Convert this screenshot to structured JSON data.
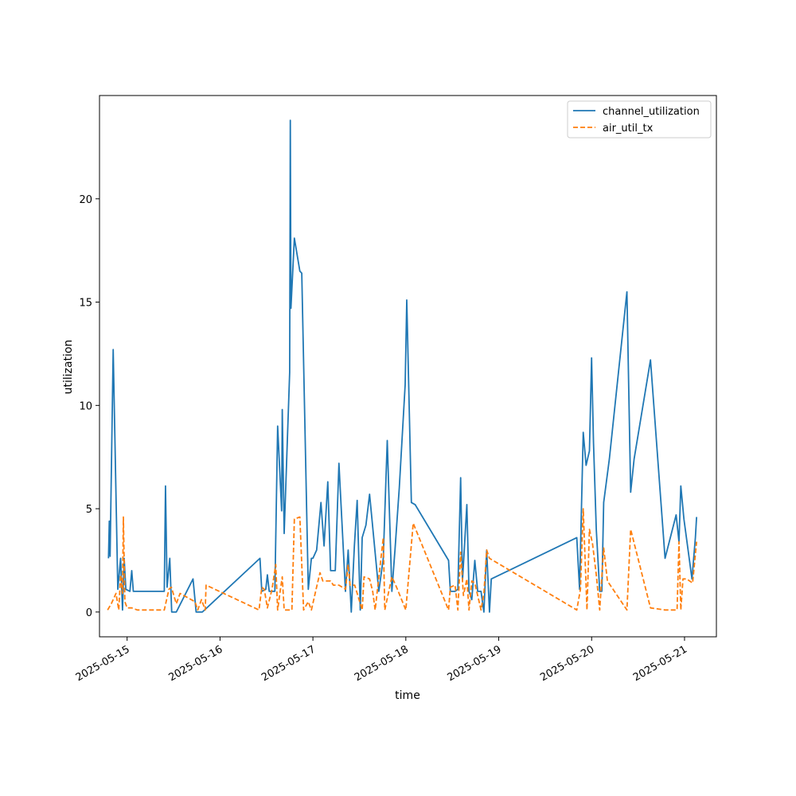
{
  "chart_data": {
    "type": "line",
    "title": "",
    "xlabel": "time",
    "ylabel": "utilization",
    "x_ticks": [
      "2025-05-15",
      "2025-05-16",
      "2025-05-17",
      "2025-05-18",
      "2025-05-19",
      "2025-05-20",
      "2025-05-21"
    ],
    "y_ticks": [
      0,
      5,
      10,
      15,
      20
    ],
    "xlim": [
      "2025-05-14T16:52",
      "2025-05-21T08:14"
    ],
    "ylim": [
      -1.2,
      25
    ],
    "grid": false,
    "legend_position": "top-right",
    "series": [
      {
        "name": "channel_utilization",
        "color": "#1f77b4",
        "style": "solid",
        "points": [
          [
            "2025-05-14T19:12",
            2.6
          ],
          [
            "2025-05-14T19:24",
            4.4
          ],
          [
            "2025-05-14T19:36",
            2.7
          ],
          [
            "2025-05-14T20:24",
            12.7
          ],
          [
            "2025-05-14T21:36",
            1.1
          ],
          [
            "2025-05-14T22:19",
            2.6
          ],
          [
            "2025-05-14T22:48",
            0.1
          ],
          [
            "2025-05-14T23:14",
            2.6
          ],
          [
            "2025-05-14T23:40",
            1.1
          ],
          [
            "2025-05-15T00:43",
            1.0
          ],
          [
            "2025-05-15T01:12",
            2.0
          ],
          [
            "2025-05-15T01:36",
            1.0
          ],
          [
            "2025-05-15T09:36",
            1.0
          ],
          [
            "2025-05-15T09:55",
            6.1
          ],
          [
            "2025-05-15T10:19",
            1.2
          ],
          [
            "2025-05-15T11:02",
            2.6
          ],
          [
            "2025-05-15T11:31",
            0.0
          ],
          [
            "2025-05-15T12:43",
            0.0
          ],
          [
            "2025-05-15T17:02",
            1.6
          ],
          [
            "2025-05-15T17:50",
            0.0
          ],
          [
            "2025-05-15T19:26",
            0.0
          ],
          [
            "2025-05-16T10:19",
            2.6
          ],
          [
            "2025-05-16T10:48",
            1.0
          ],
          [
            "2025-05-16T11:50",
            1.1
          ],
          [
            "2025-05-16T12:14",
            1.8
          ],
          [
            "2025-05-16T12:43",
            1.0
          ],
          [
            "2025-05-16T14:10",
            1.0
          ],
          [
            "2025-05-16T14:53",
            9.0
          ],
          [
            "2025-05-16T15:55",
            4.9
          ],
          [
            "2025-05-16T16:05",
            9.8
          ],
          [
            "2025-05-16T16:34",
            3.8
          ],
          [
            "2025-05-16T18:00",
            11.6
          ],
          [
            "2025-05-16T18:10",
            23.8
          ],
          [
            "2025-05-16T18:19",
            14.7
          ],
          [
            "2025-05-16T19:12",
            18.1
          ],
          [
            "2025-05-16T20:38",
            16.5
          ],
          [
            "2025-05-16T21:07",
            16.4
          ],
          [
            "2025-05-16T22:48",
            1.1
          ],
          [
            "2025-05-16T23:36",
            2.6
          ],
          [
            "2025-05-17T00:00",
            2.6
          ],
          [
            "2025-05-17T00:58",
            3.0
          ],
          [
            "2025-05-17T02:05",
            5.3
          ],
          [
            "2025-05-17T02:53",
            3.2
          ],
          [
            "2025-05-17T03:50",
            6.3
          ],
          [
            "2025-05-17T04:34",
            2.0
          ],
          [
            "2025-05-17T05:46",
            2.0
          ],
          [
            "2025-05-17T06:43",
            7.2
          ],
          [
            "2025-05-17T08:24",
            1.0
          ],
          [
            "2025-05-17T09:07",
            3.0
          ],
          [
            "2025-05-17T09:55",
            0.0
          ],
          [
            "2025-05-17T10:43",
            3.2
          ],
          [
            "2025-05-17T11:26",
            5.4
          ],
          [
            "2025-05-17T12:14",
            0.1
          ],
          [
            "2025-05-17T12:43",
            3.6
          ],
          [
            "2025-05-17T13:41",
            4.2
          ],
          [
            "2025-05-17T14:38",
            5.7
          ],
          [
            "2025-05-17T17:02",
            1.0
          ],
          [
            "2025-05-17T18:10",
            2.6
          ],
          [
            "2025-05-17T19:12",
            8.3
          ],
          [
            "2025-05-17T20:24",
            1.0
          ],
          [
            "2025-05-17T21:12",
            3.0
          ],
          [
            "2025-05-17T22:19",
            6.0
          ],
          [
            "2025-05-17T23:50",
            11.0
          ],
          [
            "2025-05-18T00:14",
            15.1
          ],
          [
            "2025-05-18T01:26",
            5.3
          ],
          [
            "2025-05-18T02:24",
            5.2
          ],
          [
            "2025-05-18T11:02",
            2.5
          ],
          [
            "2025-05-18T11:31",
            1.0
          ],
          [
            "2025-05-18T12:43",
            1.0
          ],
          [
            "2025-05-18T13:26",
            1.1
          ],
          [
            "2025-05-18T14:10",
            6.5
          ],
          [
            "2025-05-18T14:38",
            1.5
          ],
          [
            "2025-05-18T15:46",
            5.2
          ],
          [
            "2025-05-18T16:19",
            1.0
          ],
          [
            "2025-05-18T17:02",
            0.6
          ],
          [
            "2025-05-18T17:50",
            2.5
          ],
          [
            "2025-05-18T18:34",
            1.0
          ],
          [
            "2025-05-18T19:26",
            1.0
          ],
          [
            "2025-05-18T20:10",
            0.0
          ],
          [
            "2025-05-18T20:53",
            3.0
          ],
          [
            "2025-05-18T21:36",
            0.0
          ],
          [
            "2025-05-18T22:05",
            1.6
          ],
          [
            "2025-05-19T20:10",
            3.6
          ],
          [
            "2025-05-19T20:53",
            1.1
          ],
          [
            "2025-05-19T21:50",
            8.7
          ],
          [
            "2025-05-19T22:34",
            7.1
          ],
          [
            "2025-05-19T23:26",
            7.8
          ],
          [
            "2025-05-20T00:00",
            12.3
          ],
          [
            "2025-05-20T00:29",
            8.2
          ],
          [
            "2025-05-20T01:12",
            4.0
          ],
          [
            "2025-05-20T02:05",
            1.0
          ],
          [
            "2025-05-20T02:38",
            1.0
          ],
          [
            "2025-05-20T03:07",
            5.3
          ],
          [
            "2025-05-20T04:34",
            7.4
          ],
          [
            "2025-05-20T09:07",
            15.5
          ],
          [
            "2025-05-20T10:05",
            5.8
          ],
          [
            "2025-05-20T10:58",
            7.4
          ],
          [
            "2025-05-20T15:12",
            12.2
          ],
          [
            "2025-05-20T18:58",
            2.6
          ],
          [
            "2025-05-20T21:50",
            4.7
          ],
          [
            "2025-05-20T22:34",
            3.4
          ],
          [
            "2025-05-20T23:02",
            6.1
          ],
          [
            "2025-05-20T23:50",
            4.5
          ],
          [
            "2025-05-21T01:55",
            1.6
          ],
          [
            "2025-05-21T02:48",
            3.6
          ],
          [
            "2025-05-21T03:07",
            4.6
          ]
        ]
      },
      {
        "name": "air_util_tx",
        "color": "#ff7f0e",
        "style": "dashed",
        "points": [
          [
            "2025-05-14T18:58",
            0.1
          ],
          [
            "2025-05-14T19:55",
            0.4
          ],
          [
            "2025-05-14T21:07",
            0.9
          ],
          [
            "2025-05-14T21:50",
            0.1
          ],
          [
            "2025-05-14T22:19",
            1.8
          ],
          [
            "2025-05-14T22:48",
            0.9
          ],
          [
            "2025-05-14T23:02",
            4.6
          ],
          [
            "2025-05-14T23:26",
            0.5
          ],
          [
            "2025-05-15T00:00",
            0.2
          ],
          [
            "2025-05-15T01:12",
            0.2
          ],
          [
            "2025-05-15T02:38",
            0.1
          ],
          [
            "2025-05-15T09:36",
            0.1
          ],
          [
            "2025-05-15T10:48",
            1.1
          ],
          [
            "2025-05-15T11:26",
            1.2
          ],
          [
            "2025-05-15T12:43",
            0.4
          ],
          [
            "2025-05-15T13:41",
            0.9
          ],
          [
            "2025-05-15T17:31",
            0.5
          ],
          [
            "2025-05-15T18:14",
            0.1
          ],
          [
            "2025-05-15T19:12",
            0.6
          ],
          [
            "2025-05-15T20:10",
            0.1
          ],
          [
            "2025-05-15T20:24",
            1.3
          ],
          [
            "2025-05-16T10:05",
            0.1
          ],
          [
            "2025-05-16T10:48",
            1.2
          ],
          [
            "2025-05-16T11:26",
            1.1
          ],
          [
            "2025-05-16T12:14",
            0.2
          ],
          [
            "2025-05-16T13:26",
            1.1
          ],
          [
            "2025-05-16T14:24",
            2.3
          ],
          [
            "2025-05-16T14:53",
            0.1
          ],
          [
            "2025-05-16T15:36",
            1.1
          ],
          [
            "2025-05-16T16:05",
            1.7
          ],
          [
            "2025-05-16T16:34",
            0.1
          ],
          [
            "2025-05-16T18:34",
            0.1
          ],
          [
            "2025-05-16T19:12",
            4.5
          ],
          [
            "2025-05-16T20:38",
            4.6
          ],
          [
            "2025-05-16T21:36",
            0.1
          ],
          [
            "2025-05-16T22:48",
            0.5
          ],
          [
            "2025-05-16T23:36",
            0.1
          ],
          [
            "2025-05-17T01:12",
            1.4
          ],
          [
            "2025-05-17T01:50",
            1.9
          ],
          [
            "2025-05-17T02:34",
            1.5
          ],
          [
            "2025-05-17T04:34",
            1.5
          ],
          [
            "2025-05-17T05:17",
            1.3
          ],
          [
            "2025-05-17T06:43",
            1.3
          ],
          [
            "2025-05-17T08:24",
            1.1
          ],
          [
            "2025-05-17T09:07",
            2.3
          ],
          [
            "2025-05-17T09:36",
            1.3
          ],
          [
            "2025-05-17T10:48",
            1.3
          ],
          [
            "2025-05-17T12:43",
            0.1
          ],
          [
            "2025-05-17T13:12",
            1.7
          ],
          [
            "2025-05-17T14:38",
            1.6
          ],
          [
            "2025-05-17T15:26",
            1.0
          ],
          [
            "2025-05-17T16:05",
            0.1
          ],
          [
            "2025-05-17T18:10",
            3.6
          ],
          [
            "2025-05-17T18:34",
            0.1
          ],
          [
            "2025-05-17T20:24",
            1.7
          ],
          [
            "2025-05-17T21:36",
            1.2
          ],
          [
            "2025-05-18T00:00",
            0.1
          ],
          [
            "2025-05-18T01:55",
            4.3
          ],
          [
            "2025-05-18T11:02",
            0.1
          ],
          [
            "2025-05-18T11:31",
            1.2
          ],
          [
            "2025-05-18T12:43",
            1.3
          ],
          [
            "2025-05-18T13:26",
            0.1
          ],
          [
            "2025-05-18T14:10",
            2.9
          ],
          [
            "2025-05-18T14:53",
            0.8
          ],
          [
            "2025-05-18T15:46",
            1.6
          ],
          [
            "2025-05-18T16:19",
            0.1
          ],
          [
            "2025-05-18T17:02",
            1.5
          ],
          [
            "2025-05-18T17:50",
            1.4
          ],
          [
            "2025-05-18T19:26",
            0.1
          ],
          [
            "2025-05-18T20:10",
            0.9
          ],
          [
            "2025-05-18T20:53",
            3.0
          ],
          [
            "2025-05-18T21:36",
            2.6
          ],
          [
            "2025-05-19T20:10",
            0.1
          ],
          [
            "2025-05-19T21:07",
            1.1
          ],
          [
            "2025-05-19T21:50",
            5.0
          ],
          [
            "2025-05-19T22:48",
            0.1
          ],
          [
            "2025-05-19T23:26",
            4.0
          ],
          [
            "2025-05-20T00:14",
            3.3
          ],
          [
            "2025-05-20T01:12",
            1.8
          ],
          [
            "2025-05-20T02:05",
            0.1
          ],
          [
            "2025-05-20T03:07",
            3.1
          ],
          [
            "2025-05-20T04:05",
            1.5
          ],
          [
            "2025-05-20T09:07",
            0.1
          ],
          [
            "2025-05-20T10:05",
            4.0
          ],
          [
            "2025-05-20T15:12",
            0.2
          ],
          [
            "2025-05-20T18:58",
            0.1
          ],
          [
            "2025-05-20T22:05",
            0.1
          ],
          [
            "2025-05-20T22:34",
            3.4
          ],
          [
            "2025-05-20T23:02",
            0.1
          ],
          [
            "2025-05-20T23:36",
            1.6
          ],
          [
            "2025-05-21T00:34",
            1.6
          ],
          [
            "2025-05-21T02:05",
            1.4
          ],
          [
            "2025-05-21T03:07",
            3.4
          ]
        ]
      }
    ]
  }
}
